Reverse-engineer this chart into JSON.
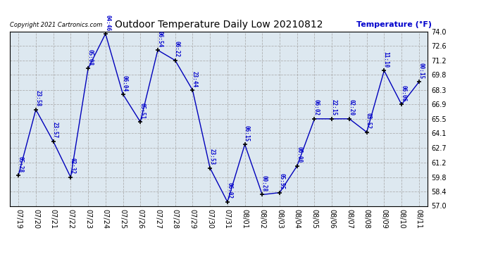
{
  "title": "Outdoor Temperature Daily Low 20210812",
  "ylabel": "Temperature (°F)",
  "copyright_text": "Copyright 2021 Cartronics.com",
  "background_color": "#ffffff",
  "plot_bg_color": "#dde8f0",
  "line_color": "#0000bb",
  "marker_color": "#000000",
  "text_color": "#0000cc",
  "ylim": [
    57.0,
    74.0
  ],
  "yticks": [
    57.0,
    58.4,
    59.8,
    61.2,
    62.7,
    64.1,
    65.5,
    66.9,
    68.3,
    69.8,
    71.2,
    72.6,
    74.0
  ],
  "dates": [
    "07/19",
    "07/20",
    "07/21",
    "07/22",
    "07/23",
    "07/24",
    "07/25",
    "07/26",
    "07/27",
    "07/28",
    "07/29",
    "07/30",
    "07/31",
    "08/01",
    "08/02",
    "08/03",
    "08/04",
    "08/05",
    "08/06",
    "08/07",
    "08/08",
    "08/09",
    "08/10",
    "08/11"
  ],
  "temperatures": [
    60.0,
    66.4,
    63.3,
    59.8,
    70.4,
    73.8,
    67.9,
    65.2,
    72.2,
    71.2,
    68.3,
    60.7,
    57.4,
    63.0,
    58.1,
    58.3,
    60.9,
    65.5,
    65.5,
    65.5,
    64.2,
    70.2,
    66.9,
    69.1
  ],
  "annotations": [
    {
      "idx": 0,
      "time": "05:28"
    },
    {
      "idx": 1,
      "time": "23:58"
    },
    {
      "idx": 2,
      "time": "23:57"
    },
    {
      "idx": 3,
      "time": "02:32"
    },
    {
      "idx": 4,
      "time": "05:08"
    },
    {
      "idx": 5,
      "time": "04:46"
    },
    {
      "idx": 6,
      "time": "06:04"
    },
    {
      "idx": 7,
      "time": "05:51"
    },
    {
      "idx": 8,
      "time": "06:54"
    },
    {
      "idx": 9,
      "time": "06:22"
    },
    {
      "idx": 10,
      "time": "23:44"
    },
    {
      "idx": 11,
      "time": "23:53"
    },
    {
      "idx": 12,
      "time": "06:02"
    },
    {
      "idx": 13,
      "time": "06:15"
    },
    {
      "idx": 14,
      "time": "00:28"
    },
    {
      "idx": 15,
      "time": "05:55"
    },
    {
      "idx": 16,
      "time": "06:00"
    },
    {
      "idx": 17,
      "time": "06:02"
    },
    {
      "idx": 18,
      "time": "22:15"
    },
    {
      "idx": 19,
      "time": "02:20"
    },
    {
      "idx": 20,
      "time": "03:52"
    },
    {
      "idx": 21,
      "time": "11:10"
    },
    {
      "idx": 22,
      "time": "06:06"
    },
    {
      "idx": 23,
      "time": "00:15"
    }
  ],
  "figsize": [
    6.9,
    3.75
  ],
  "dpi": 100
}
